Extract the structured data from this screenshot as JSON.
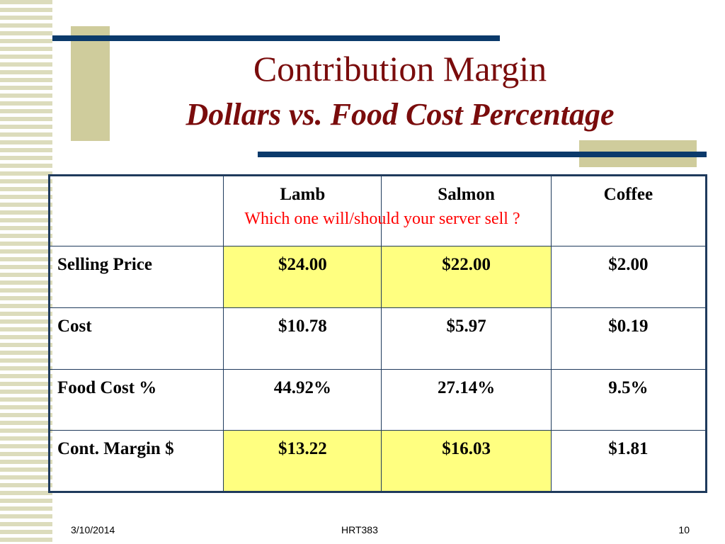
{
  "slide": {
    "title": "Contribution Margin",
    "subtitle": "Dollars vs. Food Cost Percentage",
    "question": "Which one will/should your server sell ?",
    "highlight_color": "#ffff80",
    "title_color": "#7a0c0c",
    "accent_color": "#0b3a6b"
  },
  "table": {
    "headers": [
      "",
      "Lamb",
      "Salmon",
      "Coffee"
    ],
    "rows": [
      {
        "label": "Selling Price",
        "values": [
          "$24.00",
          "$22.00",
          "$2.00"
        ]
      },
      {
        "label": "Cost",
        "values": [
          "$10.78",
          "$5.97",
          "$0.19"
        ]
      },
      {
        "label": "Food Cost %",
        "values": [
          "44.92%",
          "27.14%",
          "9.5%"
        ]
      },
      {
        "label": "Cont. Margin $",
        "values": [
          "$13.22",
          "$16.03",
          "$1.81"
        ]
      }
    ]
  },
  "footer": {
    "date": "3/10/2014",
    "course": "HRT383",
    "page": "10"
  }
}
